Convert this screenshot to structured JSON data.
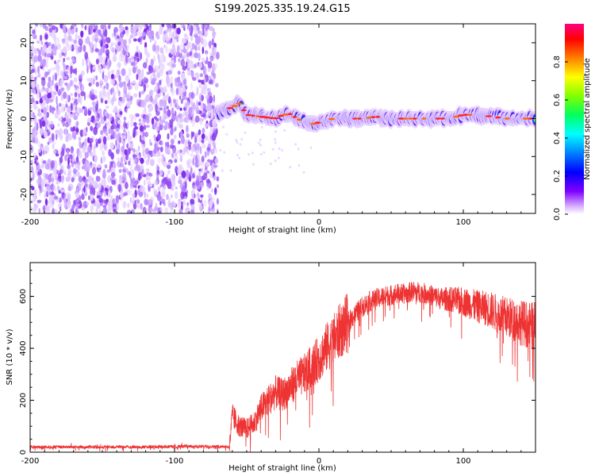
{
  "title": "S199.2025.335.19.24.G15",
  "chart_data": [
    {
      "type": "heatmap",
      "name": "spectrogram",
      "xlabel": "Height of straight line (km)",
      "ylabel": "Frequency (Hz)",
      "xlim": [
        -200,
        150
      ],
      "ylim": [
        -25,
        25
      ],
      "xticks": [
        -200,
        -100,
        0,
        100
      ],
      "yticks": [
        20,
        10,
        0,
        -10,
        -20
      ],
      "noise_region_x": [
        -200,
        -70
      ],
      "signal_region_x": [
        -70,
        150
      ],
      "signal_frequency_hz": 0,
      "signal_track": [
        [
          -70,
          1.5
        ],
        [
          -60,
          3
        ],
        [
          -55,
          4
        ],
        [
          -50,
          1
        ],
        [
          -40,
          0.5
        ],
        [
          -30,
          0
        ],
        [
          -25,
          1
        ],
        [
          -20,
          1.2
        ],
        [
          -15,
          0
        ],
        [
          -10,
          -1
        ],
        [
          -5,
          -1.5
        ],
        [
          0,
          -1
        ],
        [
          5,
          -0.5
        ],
        [
          10,
          0
        ],
        [
          20,
          0
        ],
        [
          30,
          0
        ],
        [
          40,
          0.5
        ],
        [
          50,
          0
        ],
        [
          60,
          0
        ],
        [
          70,
          0
        ],
        [
          80,
          0
        ],
        [
          90,
          0
        ],
        [
          100,
          1
        ],
        [
          110,
          1
        ],
        [
          120,
          0.5
        ],
        [
          130,
          0
        ],
        [
          140,
          0
        ],
        [
          150,
          0
        ]
      ],
      "colorbar": {
        "label": "Normalized spectral amplitude",
        "range": [
          0,
          1
        ],
        "ticks": [
          "0.0",
          "0.2",
          "0.4",
          "0.6",
          "0.8"
        ]
      }
    },
    {
      "type": "line",
      "name": "snr",
      "xlabel": "Height of straight line (km)",
      "ylabel": "SNR (10 * v/v)",
      "xlim": [
        -200,
        150
      ],
      "ylim": [
        0,
        730
      ],
      "xticks": [
        -200,
        -100,
        0,
        100
      ],
      "yticks": [
        0,
        200,
        400,
        600
      ],
      "color": "#ee3333",
      "x": [
        -200,
        -180,
        -160,
        -140,
        -120,
        -100,
        -90,
        -80,
        -70,
        -65,
        -62,
        -60,
        -55,
        -50,
        -45,
        -40,
        -35,
        -30,
        -25,
        -20,
        -15,
        -10,
        -5,
        0,
        5,
        10,
        15,
        20,
        25,
        30,
        35,
        40,
        45,
        50,
        55,
        60,
        65,
        70,
        75,
        80,
        85,
        90,
        95,
        100,
        105,
        110,
        115,
        120,
        125,
        130,
        135,
        140,
        145,
        150
      ],
      "values": [
        20,
        20,
        20,
        20,
        20,
        22,
        22,
        22,
        22,
        22,
        20,
        140,
        100,
        90,
        110,
        170,
        200,
        230,
        220,
        250,
        280,
        300,
        330,
        360,
        400,
        430,
        470,
        500,
        530,
        560,
        580,
        590,
        600,
        605,
        610,
        610,
        620,
        615,
        610,
        600,
        590,
        590,
        585,
        580,
        570,
        560,
        555,
        545,
        530,
        520,
        510,
        500,
        490,
        480
      ]
    }
  ]
}
